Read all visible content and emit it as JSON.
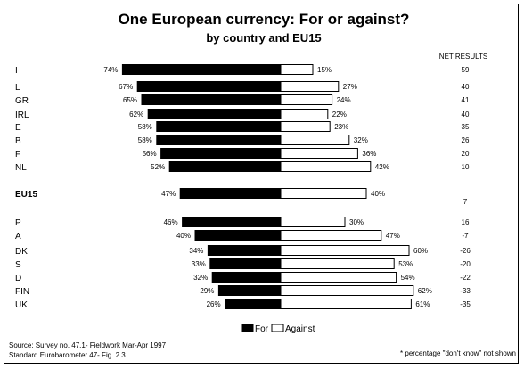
{
  "chart_data": {
    "type": "bar",
    "title": "One European currency: For or against?",
    "subtitle": "by country and EU15",
    "net_header": "NET RESULTS",
    "percent_suffix": "%",
    "categories": [
      "I",
      "L",
      "GR",
      "IRL",
      "E",
      "B",
      "F",
      "NL",
      "EU15",
      "P",
      "A",
      "DK",
      "S",
      "D",
      "FIN",
      "UK"
    ],
    "series": [
      {
        "name": "For",
        "color": "#000000",
        "values": [
          74,
          67,
          65,
          62,
          58,
          58,
          56,
          52,
          47,
          46,
          40,
          34,
          33,
          32,
          29,
          26
        ]
      },
      {
        "name": "Against",
        "color": "#ffffff",
        "values": [
          15,
          27,
          24,
          22,
          23,
          32,
          36,
          42,
          40,
          30,
          47,
          60,
          53,
          54,
          62,
          61
        ]
      }
    ],
    "net_results": [
      59,
      40,
      41,
      40,
      35,
      26,
      20,
      10,
      7,
      16,
      -7,
      -26,
      -20,
      -22,
      -33,
      -35
    ],
    "highlight": "EU15",
    "legend": {
      "placement": "bottom-center",
      "items": [
        "For",
        "Against"
      ]
    },
    "grid": false
  },
  "footer": {
    "source": "Source:  Survey no. 47.1- Fieldwork  Mar-Apr 1997",
    "reference": "Standard Eurobarometer 47- Fig. 2.3",
    "note": "* percentage \"don't know\" not shown"
  }
}
